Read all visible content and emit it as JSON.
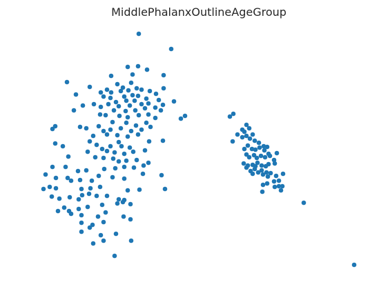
{
  "chart_data": {
    "type": "scatter",
    "title": "MiddlePhalanxOutlineAgeGroup",
    "xlabel": "",
    "ylabel": "",
    "axes_visible": false,
    "grid": false,
    "legend": "none",
    "marker_color": "#1f77b4",
    "series": [
      {
        "points": [
          [
            201,
            49
          ],
          [
            248,
            71
          ],
          [
            200,
            96
          ],
          [
            213,
            101
          ],
          [
            185,
            97
          ],
          [
            161,
            110
          ],
          [
            192,
            108
          ],
          [
            237,
            109
          ],
          [
            97,
            119
          ],
          [
            130,
            126
          ],
          [
            170,
            122
          ],
          [
            190,
            120
          ],
          [
            178,
            127
          ],
          [
            198,
            128
          ],
          [
            205,
            130
          ],
          [
            217,
            132
          ],
          [
            237,
            128
          ],
          [
            146,
            134
          ],
          [
            155,
            130
          ],
          [
            161,
            134
          ],
          [
            175,
            132
          ],
          [
            186,
            131
          ],
          [
            110,
            137
          ],
          [
            150,
            140
          ],
          [
            160,
            142
          ],
          [
            180,
            140
          ],
          [
            192,
            138
          ],
          [
            200,
            139
          ],
          [
            212,
            143
          ],
          [
            226,
            136
          ],
          [
            168,
            148
          ],
          [
            183,
            146
          ],
          [
            195,
            146
          ],
          [
            205,
            151
          ],
          [
            215,
            150
          ],
          [
            230,
            145
          ],
          [
            252,
            147
          ],
          [
            136,
            151
          ],
          [
            120,
            153
          ],
          [
            146,
            155
          ],
          [
            157,
            151
          ],
          [
            172,
            154
          ],
          [
            188,
            153
          ],
          [
            210,
            157
          ],
          [
            225,
            156
          ],
          [
            236,
            152
          ],
          [
            107,
            160
          ],
          [
            165,
            160
          ],
          [
            182,
            161
          ],
          [
            196,
            160
          ],
          [
            201,
            167
          ],
          [
            215,
            166
          ],
          [
            233,
            160
          ],
          [
            145,
            166
          ],
          [
            153,
            167
          ],
          [
            173,
            168
          ],
          [
            185,
            170
          ],
          [
            225,
            171
          ],
          [
            268,
            168
          ],
          [
            262,
            172
          ],
          [
            80,
            183
          ],
          [
            76,
            187
          ],
          [
            116,
            184
          ],
          [
            125,
            186
          ],
          [
            143,
            183
          ],
          [
            150,
            190
          ],
          [
            160,
            188
          ],
          [
            175,
            186
          ],
          [
            190,
            190
          ],
          [
            205,
            188
          ],
          [
            218,
            184
          ],
          [
            197,
            182
          ],
          [
            163,
            177
          ],
          [
            183,
            178
          ],
          [
            212,
            178
          ],
          [
            135,
            197
          ],
          [
            155,
            195
          ],
          [
            170,
            196
          ],
          [
            185,
            198
          ],
          [
            200,
            195
          ],
          [
            216,
            205
          ],
          [
            236,
            204
          ],
          [
            80,
            208
          ],
          [
            91,
            212
          ],
          [
            130,
            205
          ],
          [
            140,
            210
          ],
          [
            160,
            212
          ],
          [
            176,
            212
          ],
          [
            188,
            214
          ],
          [
            172,
            206
          ],
          [
            127,
            220
          ],
          [
            148,
            216
          ],
          [
            155,
            219
          ],
          [
            166,
            221
          ],
          [
            180,
            223
          ],
          [
            193,
            220
          ],
          [
            210,
            218
          ],
          [
            99,
            227
          ],
          [
            138,
            228
          ],
          [
            150,
            229
          ],
          [
            164,
            230
          ],
          [
            172,
            234
          ],
          [
            183,
            233
          ],
          [
            198,
            232
          ],
          [
            215,
            236
          ],
          [
            76,
            242
          ],
          [
            95,
            242
          ],
          [
            113,
            248
          ],
          [
            125,
            247
          ],
          [
            151,
            245
          ],
          [
            167,
            244
          ],
          [
            180,
            242
          ],
          [
            194,
            243
          ],
          [
            208,
            240
          ],
          [
            66,
            253
          ],
          [
            81,
            258
          ],
          [
            98,
            258
          ],
          [
            103,
            262
          ],
          [
            116,
            261
          ],
          [
            133,
            262
          ],
          [
            143,
            255
          ],
          [
            163,
            257
          ],
          [
            180,
            259
          ],
          [
            207,
            252
          ],
          [
            234,
            254
          ],
          [
            63,
            274
          ],
          [
            72,
            271
          ],
          [
            81,
            273
          ],
          [
            118,
            274
          ],
          [
            131,
            273
          ],
          [
            145,
            271
          ],
          [
            185,
            276
          ],
          [
            202,
            275
          ],
          [
            239,
            274
          ],
          [
            75,
            285
          ],
          [
            86,
            288
          ],
          [
            101,
            286
          ],
          [
            114,
            289
          ],
          [
            119,
            283
          ],
          [
            129,
            281
          ],
          [
            140,
            284
          ],
          [
            155,
            284
          ],
          [
            172,
            289
          ],
          [
            180,
            290
          ],
          [
            93,
            301
          ],
          [
            100,
            306
          ],
          [
            114,
            303
          ],
          [
            127,
            300
          ],
          [
            148,
            297
          ],
          [
            170,
            295
          ],
          [
            178,
            293
          ],
          [
            189,
            296
          ],
          [
            84,
            306
          ],
          [
            103,
            310
          ],
          [
            118,
            312
          ],
          [
            142,
            314
          ],
          [
            153,
            308
          ],
          [
            179,
            314
          ],
          [
            118,
            323
          ],
          [
            134,
            326
          ],
          [
            150,
            322
          ],
          [
            189,
            318
          ],
          [
            130,
            330
          ],
          [
            118,
            336
          ],
          [
            168,
            339
          ],
          [
            146,
            341
          ],
          [
            150,
            349
          ],
          [
            190,
            349
          ],
          [
            135,
            353
          ],
          [
            166,
            371
          ],
          [
            333,
            169
          ],
          [
            338,
            165
          ],
          [
            357,
            181
          ],
          [
            351,
            188
          ],
          [
            354,
            191
          ],
          [
            361,
            186
          ],
          [
            337,
            205
          ],
          [
            344,
            195
          ],
          [
            351,
            199
          ],
          [
            357,
            197
          ],
          [
            362,
            201
          ],
          [
            369,
            204
          ],
          [
            375,
            207
          ],
          [
            366,
            195
          ],
          [
            382,
            212
          ],
          [
            387,
            213
          ],
          [
            401,
            222
          ],
          [
            354,
            216
          ],
          [
            359,
            211
          ],
          [
            365,
            216
          ],
          [
            370,
            217
          ],
          [
            376,
            214
          ],
          [
            383,
            218
          ],
          [
            389,
            223
          ],
          [
            357,
            224
          ],
          [
            361,
            228
          ],
          [
            368,
            225
          ],
          [
            372,
            229
          ],
          [
            378,
            226
          ],
          [
            384,
            228
          ],
          [
            391,
            226
          ],
          [
            397,
            232
          ],
          [
            398,
            237
          ],
          [
            353,
            237
          ],
          [
            359,
            240
          ],
          [
            366,
            239
          ],
          [
            370,
            241
          ],
          [
            373,
            236
          ],
          [
            379,
            240
          ],
          [
            385,
            241
          ],
          [
            389,
            238
          ],
          [
            357,
            243
          ],
          [
            363,
            248
          ],
          [
            369,
            245
          ],
          [
            374,
            250
          ],
          [
            379,
            247
          ],
          [
            386,
            250
          ],
          [
            392,
            251
          ],
          [
            366,
            252
          ],
          [
            381,
            253
          ],
          [
            388,
            256
          ],
          [
            400,
            255
          ],
          [
            410,
            252
          ],
          [
            397,
            263
          ],
          [
            404,
            262
          ],
          [
            398,
            271
          ],
          [
            404,
            270
          ],
          [
            409,
            270
          ],
          [
            381,
            268
          ],
          [
            387,
            266
          ],
          [
            380,
            278
          ],
          [
            407,
            276
          ],
          [
            440,
            294
          ],
          [
            513,
            384
          ]
        ]
      }
    ]
  }
}
